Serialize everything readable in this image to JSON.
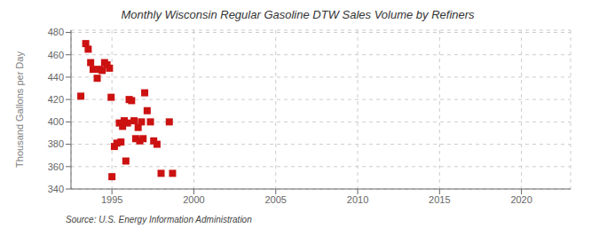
{
  "chart_data": {
    "type": "scatter",
    "title": "Monthly Wisconsin Regular Gasoline DTW Sales Volume by Refiners",
    "y_label": "Thousand Gallons per Day",
    "annotations": [
      "Source: U.S. Energy Information Administration"
    ],
    "color": "#cc1111",
    "marker": "square",
    "grid": true,
    "xlim": [
      1992.5,
      2023
    ],
    "ylim": [
      340,
      482
    ],
    "xticks": [
      1995,
      2000,
      2005,
      2010,
      2015,
      2020
    ],
    "yticks": [
      340,
      360,
      380,
      400,
      420,
      440,
      460,
      480
    ],
    "x": [
      1993.1,
      1993.4,
      1993.55,
      1993.7,
      1993.85,
      1994.1,
      1994.25,
      1994.4,
      1994.55,
      1994.7,
      1994.85,
      1994.95,
      1995.0,
      1995.15,
      1995.3,
      1995.45,
      1995.55,
      1995.65,
      1995.75,
      1995.85,
      1995.95,
      1996.05,
      1996.2,
      1996.35,
      1996.45,
      1996.6,
      1996.7,
      1996.8,
      1996.9,
      1997.0,
      1997.15,
      1997.35,
      1997.55,
      1997.75,
      1998.0,
      1998.5,
      1998.7
    ],
    "values": [
      423,
      470,
      465,
      453,
      447,
      439,
      447,
      446,
      453,
      451,
      448,
      422,
      351,
      378,
      381,
      399,
      382,
      396,
      401,
      365,
      399,
      420,
      419,
      401,
      385,
      395,
      383,
      400,
      385,
      426,
      410,
      400,
      383,
      380,
      354,
      400,
      354
    ]
  }
}
